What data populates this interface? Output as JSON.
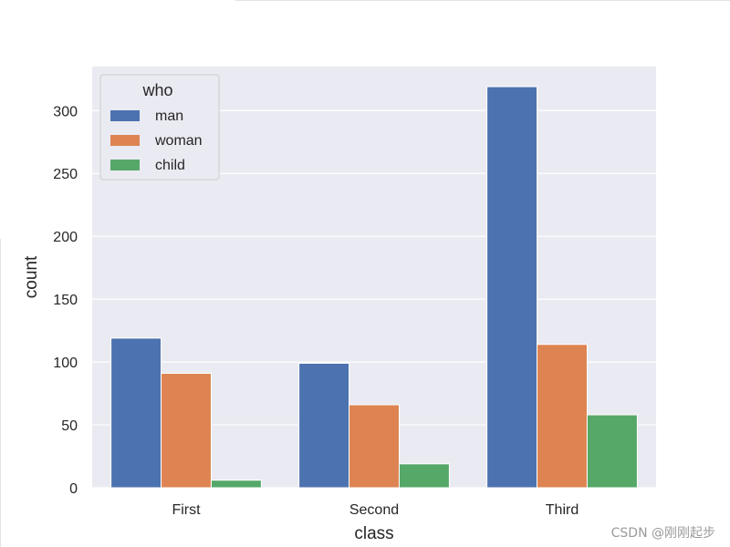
{
  "chart_data": {
    "type": "bar",
    "categories": [
      "First",
      "Second",
      "Third"
    ],
    "series": [
      {
        "name": "man",
        "values": [
          119,
          99,
          319
        ],
        "color": "#4c72b0"
      },
      {
        "name": "woman",
        "values": [
          91,
          66,
          114
        ],
        "color": "#dd8452"
      },
      {
        "name": "child",
        "values": [
          6,
          19,
          58
        ],
        "color": "#55a868"
      }
    ],
    "xlabel": "class",
    "ylabel": "count",
    "ylim": [
      0,
      335
    ],
    "yticks": [
      0,
      50,
      100,
      150,
      200,
      250,
      300
    ],
    "grid": true,
    "background": "#eaeaf2",
    "legend_title": "who",
    "legend_position": "top-left"
  },
  "watermark": "CSDN @刚刚起步"
}
